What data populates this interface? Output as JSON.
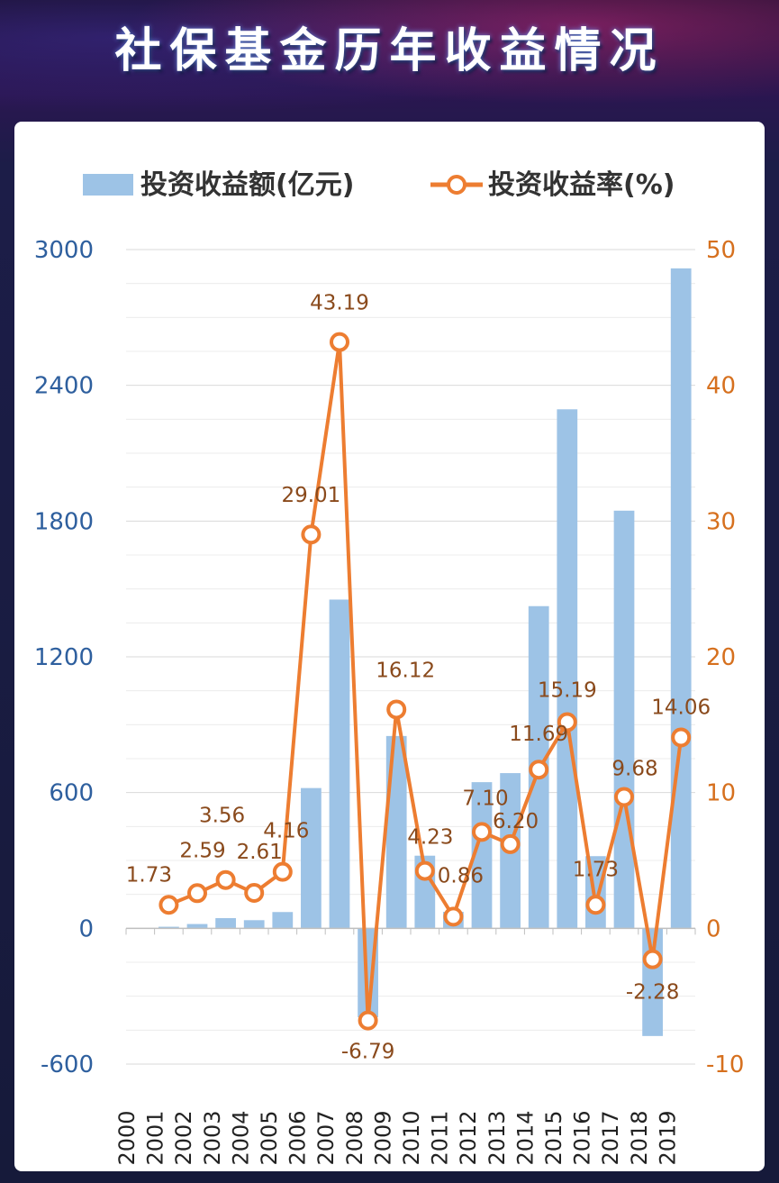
{
  "title": "社保基金历年收益情况",
  "colors": {
    "bar": "#9dc3e6",
    "line": "#ed7d31",
    "left_axis": "#2e5f9e",
    "right_axis": "#d6701e",
    "label": "#8a4a1c"
  },
  "chart_data": {
    "type": "bar+line",
    "categories": [
      "2000",
      "2001",
      "2002",
      "2003",
      "2004",
      "2005",
      "2006",
      "2007",
      "2008",
      "2009",
      "2010",
      "2011",
      "2012",
      "2013",
      "2014",
      "2015",
      "2016",
      "2017",
      "2018",
      "2019"
    ],
    "series": [
      {
        "name": "投资收益额(亿元)",
        "type": "bar",
        "axis": "left",
        "values": [
          null,
          7,
          19,
          45,
          36,
          72,
          620,
          1453,
          -393,
          850,
          321,
          73,
          646,
          686,
          1424,
          2294,
          319,
          1846,
          -476,
          2917
        ]
      },
      {
        "name": "投资收益率(%)",
        "type": "line",
        "axis": "right",
        "values": [
          null,
          1.73,
          2.59,
          3.56,
          2.61,
          4.16,
          29.01,
          43.19,
          -6.79,
          16.12,
          4.23,
          0.86,
          7.1,
          6.2,
          11.69,
          15.19,
          1.73,
          9.68,
          -2.28,
          14.06
        ],
        "labels": [
          "",
          "1.73",
          "2.59",
          "3.56",
          "2.61",
          "4.16",
          "29.01",
          "43.19",
          "-6.79",
          "16.12",
          "4.23",
          "0.86",
          "7.10",
          "6.20",
          "11.69",
          "15.19",
          "1.73",
          "9.68",
          "-2.28",
          "14.06"
        ]
      }
    ],
    "y_left": {
      "min": -600,
      "max": 3000,
      "ticks": [
        "-600",
        "0",
        "600",
        "1200",
        "1800",
        "2400",
        "3000"
      ]
    },
    "y_right": {
      "min": -10,
      "max": 50,
      "ticks": [
        "-10",
        "0",
        "10",
        "20",
        "30",
        "40",
        "50"
      ]
    },
    "grid": true,
    "legend_position": "top"
  }
}
